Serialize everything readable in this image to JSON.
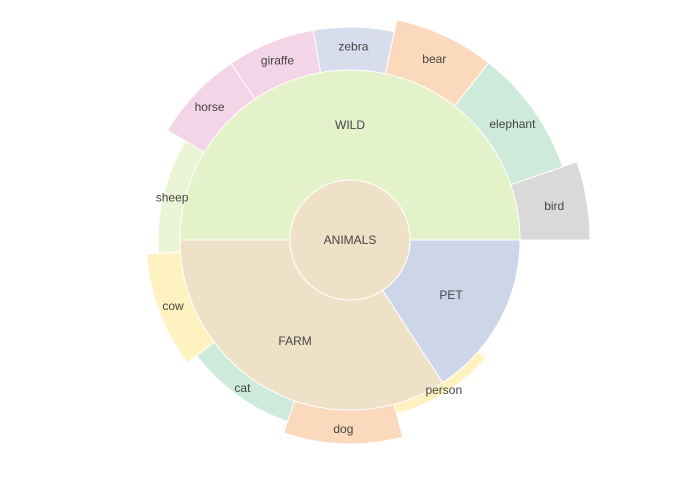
{
  "chart_data": {
    "type": "sunburst",
    "root": {
      "label": "ANIMALS",
      "color": "#efe0c8"
    },
    "groups": [
      {
        "label": "WILD",
        "color": "#e4f2c9",
        "children": [
          {
            "label": "bird",
            "color": "#d9d9d9",
            "rings": 2
          },
          {
            "label": "elephant",
            "color": "#cdeadb",
            "rings": 1.75
          },
          {
            "label": "bear",
            "color": "#fbd9bd",
            "rings": 1.75
          },
          {
            "label": "zebra",
            "color": "#d7ddec",
            "rings": 1.55
          },
          {
            "label": "giraffe",
            "color": "#f3d5e7",
            "rings": 1.55
          }
        ]
      },
      {
        "label": "FARM",
        "color": "#efe0c8",
        "children": [
          {
            "label": "horse",
            "color": "#f3d5e7",
            "rings": 1.55
          },
          {
            "label": "sheep",
            "color": "#ebf5d5",
            "rings": 1.2
          },
          {
            "label": "cow",
            "color": "#fff2c1",
            "rings": 1.4
          }
        ]
      },
      {
        "label": "PET",
        "color": "#cdd6e9",
        "children": [
          {
            "label": "cat",
            "color": "#cdeadb",
            "rings": 1.2
          },
          {
            "label": "dog",
            "color": "#fbd9bd",
            "rings": 1.4
          },
          {
            "label": "person",
            "color": "#fff2c1",
            "rings": 1.0
          }
        ]
      }
    ]
  }
}
